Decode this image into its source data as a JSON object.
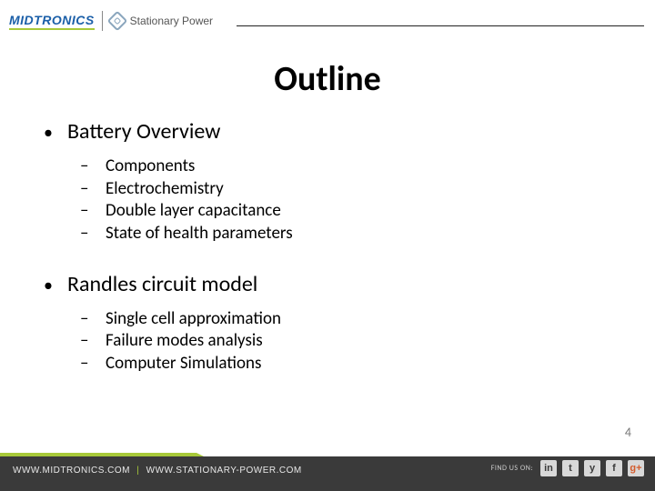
{
  "header": {
    "logo_primary": "MIDTRONICS",
    "logo_secondary": "Stationary Power"
  },
  "title": "Outline",
  "content": {
    "sections": [
      {
        "heading": "Battery Overview",
        "items": [
          "Components",
          "Electrochemistry",
          "Double layer capacitance",
          "State of health parameters"
        ]
      },
      {
        "heading": "Randles circuit model",
        "items": [
          "Single cell approximation",
          "Failure modes analysis",
          "Computer Simulations"
        ]
      }
    ]
  },
  "page_number": "4",
  "footer": {
    "url1": "WWW.MIDTRONICS.COM",
    "url2": "WWW.STATIONARY-POWER.COM",
    "find_label": "FIND US ON:",
    "social": [
      "in",
      "t",
      "y",
      "f",
      "g+"
    ]
  },
  "colors": {
    "accent_green": "#a7c939",
    "brand_blue": "#1b5fa8",
    "footer_bg": "#3a3a3a"
  }
}
